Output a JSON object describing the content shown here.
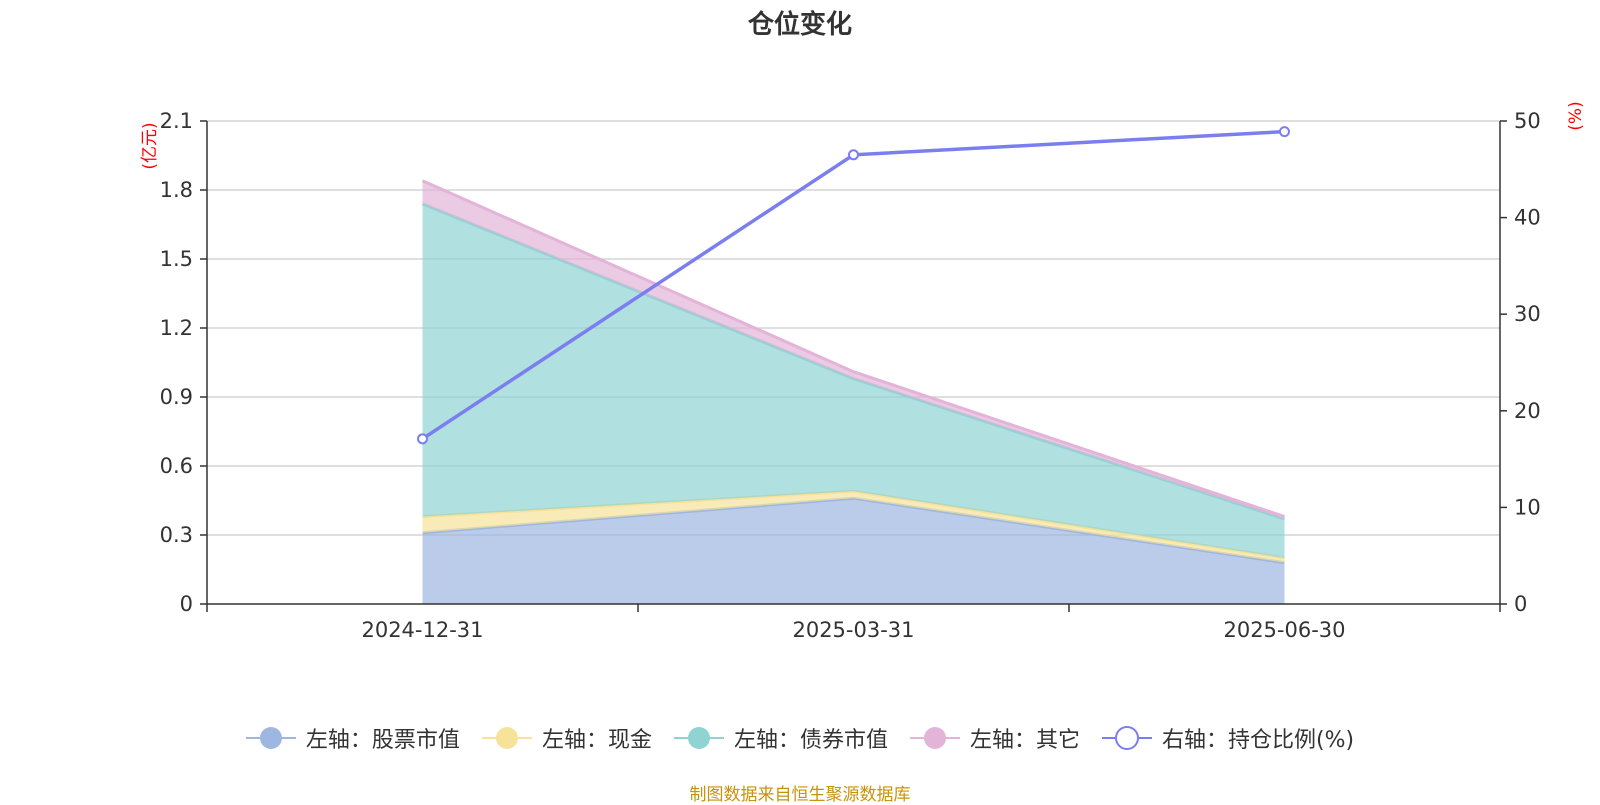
{
  "title": "仓位变化",
  "source_note": "制图数据来自恒生聚源数据库",
  "colors": {
    "stock": "#9db7e0",
    "cash": "#f7e29a",
    "bond": "#8fd3d3",
    "other": "#e3b3d8",
    "ratio": "#7b7eee",
    "axis_unit": "#ff0000",
    "grid": "#cccccc",
    "axis": "#333333",
    "text": "#333333"
  },
  "chart_data": {
    "type": "area",
    "title": "仓位变化",
    "categories": [
      "2024-12-31",
      "2025-03-31",
      "2025-06-30"
    ],
    "stacked": true,
    "left_axis": {
      "unit_label": "(亿元)",
      "ylim": [
        0,
        2.1
      ],
      "ticks": [
        "0",
        "0.3",
        "0.6",
        "0.9",
        "1.2",
        "1.5",
        "1.8",
        "2.1"
      ]
    },
    "right_axis": {
      "unit_label": "(%)",
      "ylim": [
        0,
        50
      ],
      "ticks": [
        "0",
        "10",
        "20",
        "30",
        "40",
        "50"
      ]
    },
    "series": [
      {
        "name": "左轴：股票市值",
        "axis": "left",
        "kind": "area",
        "color_key": "stock",
        "values": [
          0.31,
          0.46,
          0.18
        ]
      },
      {
        "name": "左轴：现金",
        "axis": "left",
        "kind": "area",
        "color_key": "cash",
        "values": [
          0.07,
          0.03,
          0.02
        ]
      },
      {
        "name": "左轴：债券市值",
        "axis": "left",
        "kind": "area",
        "color_key": "bond",
        "values": [
          1.36,
          0.49,
          0.17
        ]
      },
      {
        "name": "左轴：其它",
        "axis": "left",
        "kind": "area",
        "color_key": "other",
        "values": [
          0.1,
          0.03,
          0.01
        ]
      },
      {
        "name": "右轴：持仓比例(%)",
        "axis": "right",
        "kind": "line",
        "color_key": "ratio",
        "values": [
          17.1,
          46.5,
          48.9
        ]
      }
    ],
    "grid": true,
    "legend_position": "bottom"
  }
}
